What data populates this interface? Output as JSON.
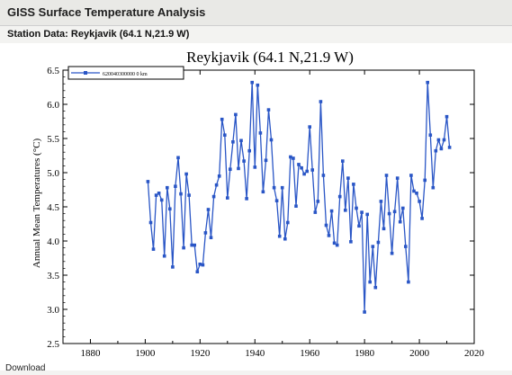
{
  "page": {
    "header_title": "GISS Surface Temperature Analysis",
    "station_line": "Station Data: Reykjavik (64.1 N,21.9 W)",
    "footer_text": "Download"
  },
  "chart_data": {
    "type": "line",
    "title": "Reykjavik (64.1 N,21.9 W)",
    "xlabel": "",
    "ylabel": "Annual Mean Temperatures (°C)",
    "xlim": [
      1870,
      2020
    ],
    "ylim": [
      2.5,
      6.5
    ],
    "xticks": [
      1880,
      1900,
      1920,
      1940,
      1960,
      1980,
      2000,
      2020
    ],
    "yticks": [
      2.5,
      3.0,
      3.5,
      4.0,
      4.5,
      5.0,
      5.5,
      6.0,
      6.5
    ],
    "ytick_labels": [
      "2.5",
      "3.0",
      "3.5",
      "4.0",
      "4.5",
      "5.0",
      "5.5",
      "6.0",
      "6.5"
    ],
    "grid": false,
    "legend_position": "top-left",
    "colors": {
      "series": "#2a56c6",
      "axis": "#000000"
    },
    "series": [
      {
        "name": "620040300000 0 km",
        "x": [
          1901,
          1902,
          1903,
          1904,
          1905,
          1906,
          1907,
          1908,
          1909,
          1910,
          1911,
          1912,
          1913,
          1914,
          1915,
          1916,
          1917,
          1918,
          1919,
          1920,
          1921,
          1922,
          1923,
          1924,
          1925,
          1926,
          1927,
          1928,
          1929,
          1930,
          1931,
          1932,
          1933,
          1934,
          1935,
          1936,
          1937,
          1938,
          1939,
          1940,
          1941,
          1942,
          1943,
          1944,
          1945,
          1946,
          1947,
          1948,
          1949,
          1950,
          1951,
          1952,
          1953,
          1954,
          1955,
          1956,
          1957,
          1958,
          1959,
          1960,
          1961,
          1962,
          1963,
          1964,
          1965,
          1966,
          1967,
          1968,
          1969,
          1970,
          1971,
          1972,
          1973,
          1974,
          1975,
          1976,
          1977,
          1978,
          1979,
          1980,
          1981,
          1982,
          1983,
          1984,
          1985,
          1986,
          1987,
          1988,
          1989,
          1990,
          1991,
          1992,
          1993,
          1994,
          1995,
          1996,
          1997,
          1998,
          1999,
          2000,
          2001,
          2002,
          2003,
          2004,
          2005,
          2006,
          2007,
          2008,
          2009,
          2010,
          2011
        ],
        "values": [
          4.87,
          4.27,
          3.88,
          4.67,
          4.7,
          4.6,
          3.78,
          4.78,
          4.47,
          3.62,
          4.8,
          5.22,
          4.69,
          3.9,
          4.98,
          4.67,
          3.94,
          3.94,
          3.55,
          3.66,
          3.65,
          4.12,
          4.46,
          4.05,
          4.65,
          4.82,
          4.95,
          5.78,
          5.55,
          4.63,
          5.05,
          5.45,
          5.85,
          5.06,
          5.47,
          5.17,
          4.62,
          5.32,
          6.32,
          5.08,
          6.28,
          5.58,
          4.72,
          5.18,
          5.92,
          5.48,
          4.78,
          4.59,
          4.07,
          4.78,
          4.03,
          4.27,
          5.23,
          5.21,
          4.51,
          5.12,
          5.07,
          4.98,
          5.02,
          5.67,
          5.04,
          4.42,
          4.58,
          6.04,
          4.96,
          4.23,
          4.08,
          4.44,
          3.97,
          3.94,
          4.65,
          5.17,
          4.45,
          4.92,
          3.99,
          4.83,
          4.48,
          4.22,
          4.42,
          2.96,
          4.39,
          3.4,
          3.92,
          3.32,
          3.98,
          4.58,
          4.18,
          4.96,
          4.4,
          3.82,
          4.43,
          4.92,
          4.28,
          4.48,
          3.92,
          3.4,
          4.96,
          4.73,
          4.7,
          4.58,
          4.33,
          4.89,
          6.32,
          5.55,
          4.78,
          5.32,
          5.48,
          5.35,
          5.48,
          5.82,
          5.37
        ]
      }
    ]
  }
}
